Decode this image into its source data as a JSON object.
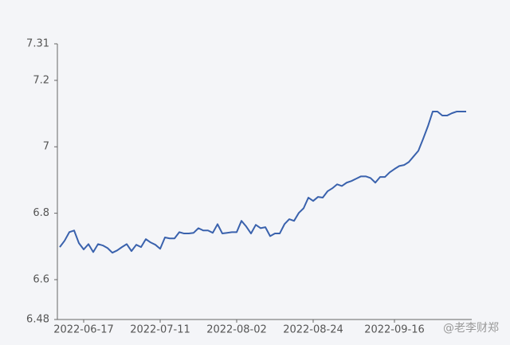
{
  "chart_data": {
    "type": "line",
    "categories": [
      null,
      null,
      null,
      null,
      null,
      "2022-06-17",
      null,
      null,
      null,
      null,
      null,
      null,
      null,
      null,
      null,
      null,
      null,
      null,
      null,
      null,
      null,
      "2022-07-11",
      null,
      null,
      null,
      null,
      null,
      null,
      null,
      null,
      null,
      null,
      null,
      null,
      null,
      null,
      null,
      "2022-08-02",
      null,
      null,
      null,
      null,
      null,
      null,
      null,
      null,
      null,
      null,
      null,
      null,
      null,
      null,
      null,
      "2022-08-24",
      null,
      null,
      null,
      null,
      null,
      null,
      null,
      null,
      null,
      null,
      null,
      null,
      null,
      null,
      null,
      null,
      "2022-09-16",
      null,
      null,
      null,
      null,
      null,
      null,
      null,
      null,
      null,
      null,
      null,
      null,
      null,
      null,
      null
    ],
    "series": [
      {
        "color": "#3a62ad",
        "values": [
          6.698,
          6.717,
          6.743,
          6.748,
          6.71,
          6.691,
          6.707,
          6.683,
          6.707,
          6.703,
          6.695,
          6.681,
          6.688,
          6.698,
          6.707,
          6.686,
          6.705,
          6.698,
          6.722,
          6.712,
          6.705,
          6.693,
          6.727,
          6.724,
          6.724,
          6.743,
          6.739,
          6.739,
          6.741,
          6.755,
          6.748,
          6.748,
          6.741,
          6.767,
          6.739,
          6.741,
          6.743,
          6.743,
          6.777,
          6.76,
          6.739,
          6.765,
          6.755,
          6.758,
          6.731,
          6.739,
          6.739,
          6.767,
          6.782,
          6.777,
          6.801,
          6.815,
          6.847,
          6.837,
          6.849,
          6.847,
          6.866,
          6.875,
          6.887,
          6.882,
          6.892,
          6.897,
          6.904,
          6.911,
          6.911,
          6.906,
          6.892,
          6.909,
          6.909,
          6.923,
          6.933,
          6.942,
          6.945,
          6.954,
          6.971,
          6.988,
          7.024,
          7.062,
          7.106,
          7.106,
          7.094,
          7.094,
          7.101,
          7.106,
          7.106,
          7.106
        ]
      }
    ],
    "ylim": [
      6.48,
      7.31
    ],
    "yticks": [
      6.48,
      6.6,
      6.8,
      7,
      7.2,
      7.31
    ],
    "watermark": "@老李财郑"
  }
}
